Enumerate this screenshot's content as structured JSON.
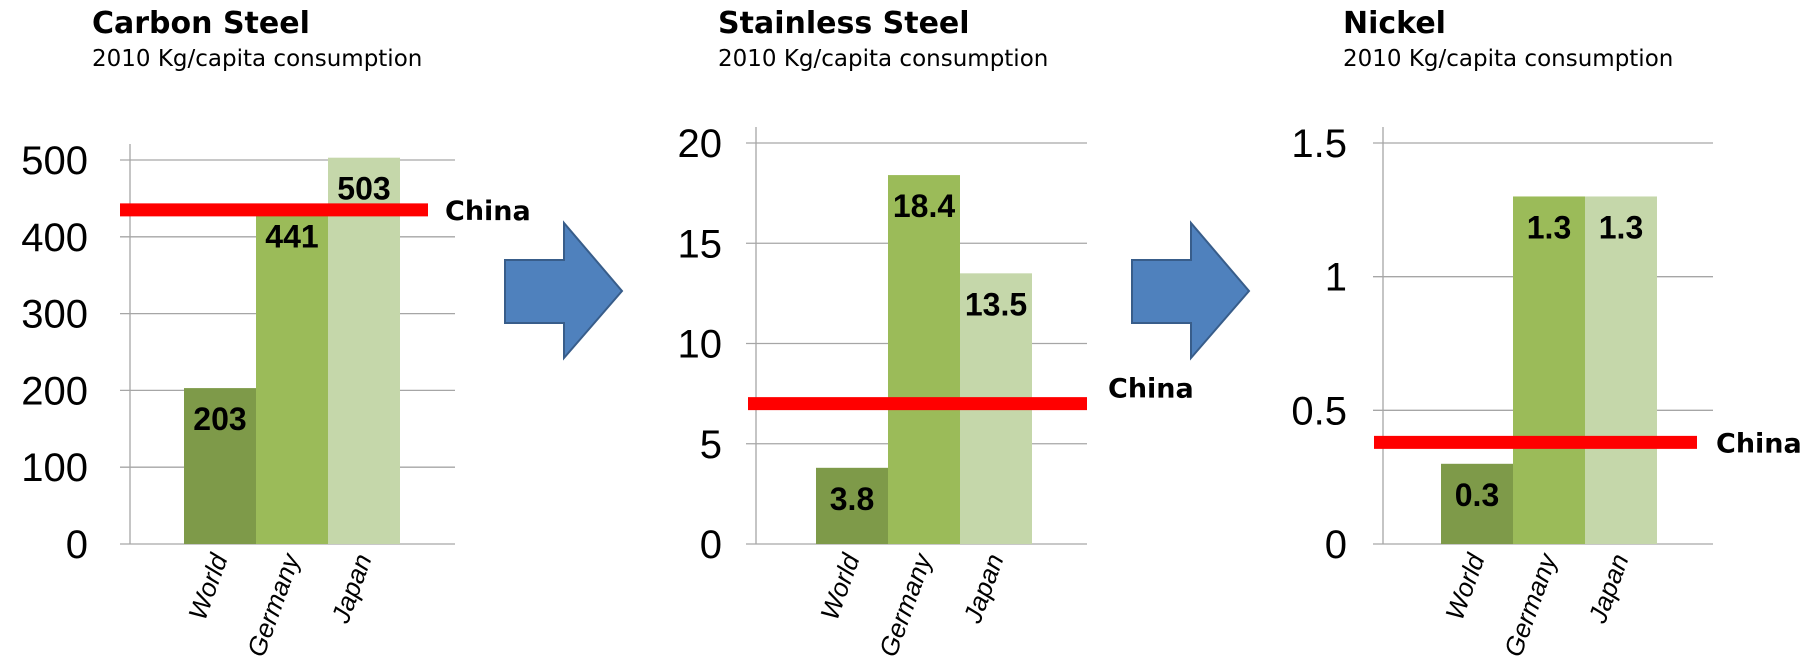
{
  "colors": {
    "world": "#7e9a49",
    "germany": "#9bbb59",
    "japan": "#c5d7aa",
    "reference_line": "#ff0000",
    "arrow_fill": "#4f81bd",
    "arrow_stroke": "#385d8a",
    "grid": "#a6a6a6"
  },
  "chart_data": [
    {
      "type": "bar",
      "title": "Carbon Steel",
      "subtitle": "2010 Kg/capita consumption",
      "categories": [
        "World",
        "Germany",
        "Japan"
      ],
      "values": [
        203,
        441,
        503
      ],
      "data_labels": [
        "203",
        "441",
        "503"
      ],
      "ylim": [
        0,
        500
      ],
      "yticks": [
        "0",
        "100",
        "200",
        "300",
        "400",
        "500"
      ],
      "grid": true,
      "reference_line": {
        "label": "China",
        "value": 435
      }
    },
    {
      "type": "bar",
      "title": "Stainless Steel",
      "subtitle": "2010 Kg/capita consumption",
      "categories": [
        "World",
        "Germany",
        "Japan"
      ],
      "values": [
        3.8,
        18.4,
        13.5
      ],
      "data_labels": [
        "3.8",
        "18.4",
        "13.5"
      ],
      "ylim": [
        0,
        20
      ],
      "yticks": [
        "0",
        "5",
        "10",
        "15",
        "20"
      ],
      "grid": true,
      "reference_line": {
        "label": "China",
        "value": 7
      }
    },
    {
      "type": "bar",
      "title": "Nickel",
      "subtitle": "2010 Kg/capita consumption",
      "categories": [
        "World",
        "Germany",
        "Japan"
      ],
      "values": [
        0.3,
        1.3,
        1.3
      ],
      "data_labels": [
        "0.3",
        "1.3",
        "1.3"
      ],
      "ylim": [
        0,
        1.5
      ],
      "yticks": [
        "0",
        "0.5",
        "1",
        "1.5"
      ],
      "grid": true,
      "reference_line": {
        "label": "China",
        "value": 0.38
      }
    }
  ]
}
